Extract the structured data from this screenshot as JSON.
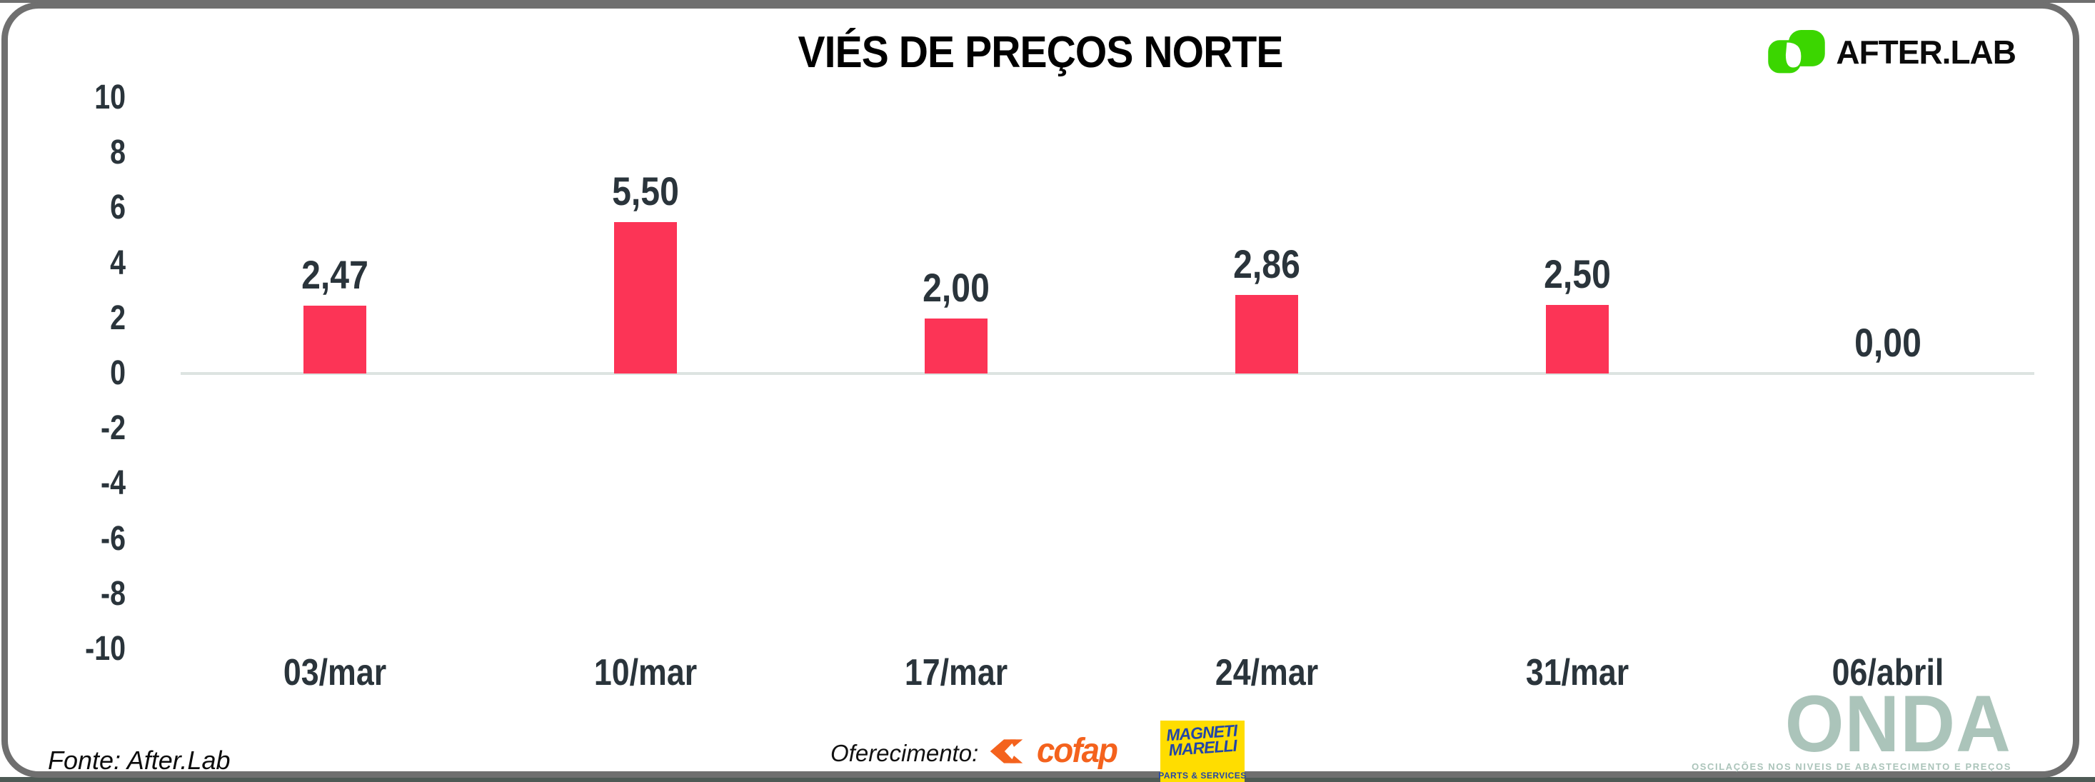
{
  "title": "VIÉS DE PREÇOS NORTE",
  "brand": {
    "name": "AFTER.LAB"
  },
  "colors": {
    "bar": "#fc3456",
    "ink": "#2a343b",
    "baseline": "#dde4e1",
    "border": "#6f6f6f",
    "brand-green": "#3bd600",
    "cofap": "#f4621d",
    "marelli-yellow": "#ffdd00",
    "marelli-blue": "#2246a8",
    "onda": "#abc4ba"
  },
  "chart_data": {
    "type": "bar",
    "title": "VIÉS DE PREÇOS NORTE",
    "categories": [
      "03/mar",
      "10/mar",
      "17/mar",
      "24/mar",
      "31/mar",
      "06/abril"
    ],
    "values": [
      2.47,
      5.5,
      2.0,
      2.86,
      2.5,
      0.0
    ],
    "value_labels": [
      "2,47",
      "5,50",
      "2,00",
      "2,86",
      "2,50",
      "0,00"
    ],
    "xlabel": "",
    "ylabel": "",
    "ylim": [
      -10,
      10
    ],
    "yticks": [
      10,
      8,
      6,
      4,
      2,
      0,
      -2,
      -4,
      -6,
      -8,
      -10
    ],
    "grid": false,
    "legend": null,
    "bar_color": "#fc3456",
    "baseline_color": "#dde4e1"
  },
  "footer": {
    "source": "Fonte: After.Lab",
    "sponsor_label": "Oferecimento:",
    "cofap": "cofap",
    "marelli_line1": "MAGNETI",
    "marelli_line2": "MARELLI",
    "marelli_sub": "PARTS & SERVICES",
    "onda_name": "ONDA",
    "onda_tagline": "OSCILAÇÕES NOS NIVEIS DE ABASTECIMENTO E PREÇOS"
  }
}
